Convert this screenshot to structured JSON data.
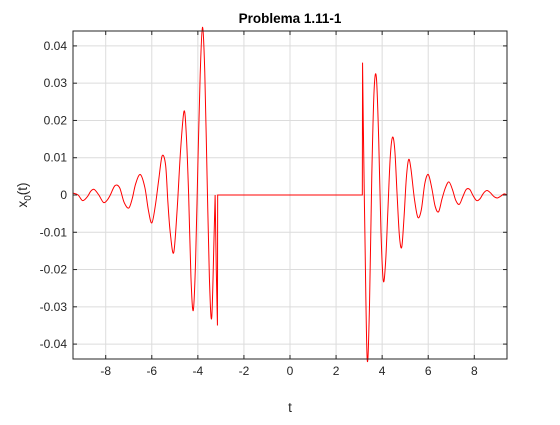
{
  "chart_data": {
    "type": "line",
    "title": "Problema 1.11-1",
    "xlabel": "t",
    "ylabel_main": "x",
    "ylabel_sub": "0",
    "ylabel_tail": "(t)",
    "xlim": [
      -9.42,
      9.42
    ],
    "ylim": [
      -0.044,
      0.044
    ],
    "grid": true,
    "line_color": "#ff0000",
    "grid_color": "#dcdcdc",
    "axis_color": "#262626",
    "xticks": [
      -8,
      -6,
      -4,
      -2,
      0,
      2,
      4,
      6,
      8
    ],
    "xtick_labels": [
      "-8",
      "-6",
      "-4",
      "-2",
      "0",
      "2",
      "4",
      "6",
      "8"
    ],
    "yticks": [
      -0.04,
      -0.03,
      -0.02,
      -0.01,
      0,
      0.01,
      0.02,
      0.03,
      0.04
    ],
    "ytick_labels": [
      "-0.04",
      "-0.03",
      "-0.02",
      "-0.01",
      "0",
      "0.01",
      "0.02",
      "0.03",
      "0.04"
    ],
    "series": [
      {
        "values_description_free": true,
        "x": [
          -9.42,
          -9.2,
          -9.0,
          -8.8,
          -8.65,
          -8.5,
          -8.3,
          -8.1,
          -7.95,
          -7.8,
          -7.6,
          -7.4,
          -7.2,
          -7.0,
          -6.85,
          -6.7,
          -6.5,
          -6.3,
          -6.15,
          -6.0,
          -5.85,
          -5.7,
          -5.55,
          -5.4,
          -5.3,
          -5.2,
          -5.05,
          -4.9,
          -4.75,
          -4.6,
          -4.5,
          -4.4,
          -4.3,
          -4.2,
          -4.1,
          -4.0,
          -3.9,
          -3.8,
          -3.7,
          -3.6,
          -3.5,
          -3.4,
          -3.3,
          -3.25,
          -3.2,
          -3.15,
          -3.14,
          3.14,
          3.15,
          3.18,
          3.25,
          3.35,
          3.45,
          3.55,
          3.65,
          3.75,
          3.85,
          3.95,
          4.05,
          4.15,
          4.25,
          4.35,
          4.45,
          4.55,
          4.65,
          4.75,
          4.85,
          4.95,
          5.05,
          5.15,
          5.25,
          5.4,
          5.55,
          5.7,
          5.85,
          6.0,
          6.15,
          6.3,
          6.45,
          6.6,
          6.75,
          6.9,
          7.05,
          7.2,
          7.35,
          7.5,
          7.65,
          7.8,
          7.95,
          8.1,
          8.25,
          8.4,
          8.55,
          8.7,
          8.85,
          9.0,
          9.15,
          9.3,
          9.42
        ],
        "y": [
          0.0005,
          0.0,
          -0.0015,
          -0.0005,
          0.001,
          0.0015,
          0.0,
          -0.002,
          -0.0015,
          0.0,
          0.0025,
          0.002,
          -0.002,
          -0.0035,
          -0.001,
          0.003,
          0.0055,
          0.002,
          -0.004,
          -0.0075,
          -0.003,
          0.004,
          0.0105,
          0.008,
          -0.002,
          -0.01,
          -0.0155,
          -0.004,
          0.012,
          0.0225,
          0.016,
          0.0,
          -0.022,
          -0.031,
          -0.018,
          0.008,
          0.032,
          0.045,
          0.033,
          0.005,
          -0.022,
          -0.033,
          -0.012,
          0.0,
          -0.02,
          -0.035,
          0.0,
          0.0,
          0.0355,
          0.02,
          -0.01,
          -0.044,
          -0.03,
          0.005,
          0.028,
          0.0315,
          0.015,
          -0.01,
          -0.023,
          -0.018,
          -0.004,
          0.01,
          0.0155,
          0.012,
          0.0,
          -0.011,
          -0.014,
          -0.006,
          0.0045,
          0.0095,
          0.007,
          -0.001,
          -0.006,
          -0.004,
          0.003,
          0.0055,
          0.002,
          -0.003,
          -0.0045,
          -0.001,
          0.002,
          0.0035,
          0.0015,
          -0.0015,
          -0.0025,
          -0.0005,
          0.0015,
          0.0015,
          -0.0002,
          -0.0015,
          -0.001,
          0.0005,
          0.0012,
          0.0006,
          -0.0004,
          -0.0008,
          -0.0003,
          0.0003,
          0.0
        ]
      }
    ]
  }
}
